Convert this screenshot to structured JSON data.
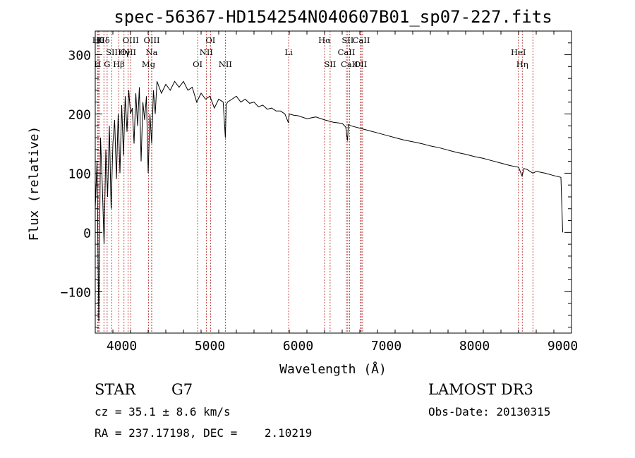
{
  "chart_data": {
    "type": "line",
    "title": "spec-56367-HD154254N040607B01_sp07-227.fits",
    "xlabel": "Wavelength (Å)",
    "ylabel": "Flux (relative)",
    "xlim": [
      3700,
      9100
    ],
    "ylim": [
      -170,
      340
    ],
    "xticks": [
      4000,
      5000,
      6000,
      7000,
      8000,
      9000
    ],
    "yticks": [
      -100,
      0,
      100,
      200,
      300
    ],
    "ytick_labels": [
      "−100",
      "0",
      "100",
      "200",
      "300"
    ],
    "series": [
      {
        "name": "flux",
        "x": [
          3700,
          3720,
          3740,
          3760,
          3780,
          3800,
          3820,
          3840,
          3860,
          3880,
          3900,
          3920,
          3940,
          3960,
          3980,
          4000,
          4020,
          4040,
          4060,
          4080,
          4100,
          4120,
          4140,
          4160,
          4180,
          4200,
          4220,
          4240,
          4260,
          4280,
          4300,
          4320,
          4340,
          4360,
          4380,
          4400,
          4450,
          4500,
          4550,
          4600,
          4650,
          4700,
          4750,
          4800,
          4850,
          4900,
          4950,
          5000,
          5050,
          5100,
          5150,
          5175,
          5185,
          5200,
          5250,
          5300,
          5350,
          5400,
          5450,
          5500,
          5550,
          5600,
          5650,
          5700,
          5750,
          5800,
          5850,
          5890,
          5900,
          5950,
          6000,
          6100,
          6200,
          6300,
          6400,
          6500,
          6540,
          6560,
          6570,
          6600,
          6700,
          6800,
          6900,
          7000,
          7100,
          7200,
          7300,
          7400,
          7500,
          7600,
          7700,
          7800,
          7900,
          8000,
          8100,
          8200,
          8300,
          8400,
          8500,
          8540,
          8560,
          8600,
          8662,
          8700,
          8800,
          8900,
          8980,
          9000
        ],
        "y": [
          40,
          120,
          -150,
          160,
          80,
          -20,
          140,
          60,
          180,
          40,
          150,
          190,
          90,
          200,
          100,
          215,
          130,
          230,
          170,
          240,
          200,
          210,
          150,
          235,
          180,
          245,
          120,
          220,
          190,
          230,
          100,
          200,
          150,
          240,
          200,
          255,
          235,
          250,
          240,
          255,
          245,
          255,
          240,
          245,
          220,
          235,
          225,
          230,
          210,
          225,
          220,
          160,
          215,
          220,
          225,
          230,
          220,
          225,
          218,
          220,
          212,
          215,
          208,
          210,
          205,
          205,
          200,
          185,
          200,
          198,
          197,
          192,
          195,
          190,
          186,
          184,
          178,
          155,
          182,
          180,
          176,
          172,
          168,
          164,
          160,
          156,
          153,
          150,
          146,
          143,
          139,
          135,
          132,
          128,
          125,
          121,
          117,
          113,
          110,
          95,
          108,
          106,
          100,
          103,
          100,
          96,
          93,
          0
        ]
      }
    ],
    "line_markers": [
      {
        "wl": 3734,
        "label": "Hθ",
        "row": 0
      },
      {
        "wl": 3750,
        "label": "K",
        "row": 0
      },
      {
        "wl": 3798,
        "label": "Hδ",
        "row": 0
      },
      {
        "wl": 4102,
        "label": "OIII",
        "row": 0
      },
      {
        "wl": 4340,
        "label": "OIII",
        "row": 0
      },
      {
        "wl": 5007,
        "label": "OI",
        "row": 0
      },
      {
        "wl": 6300,
        "label": "Hα",
        "row": 0
      },
      {
        "wl": 6563,
        "label": "SII",
        "row": 0
      },
      {
        "wl": 6716,
        "label": "CaII",
        "row": 0
      },
      {
        "wl": 8498,
        "label": "HeI",
        "row": 1
      },
      {
        "wl": 3889,
        "label": "SII",
        "row": 1
      },
      {
        "wl": 4026,
        "label": "Hγ",
        "row": 1
      },
      {
        "wl": 4072,
        "label": "OIII",
        "row": 1
      },
      {
        "wl": 4340,
        "label": "Na",
        "row": 1
      },
      {
        "wl": 4959,
        "label": "NII",
        "row": 1
      },
      {
        "wl": 5893,
        "label": "Li",
        "row": 1
      },
      {
        "wl": 6548,
        "label": "CaII",
        "row": 1
      },
      {
        "wl": 6708,
        "label": "OII",
        "row": 2
      },
      {
        "wl": 8542,
        "label": "Hη",
        "row": 2
      },
      {
        "wl": 3727,
        "label": "H",
        "row": 2
      },
      {
        "wl": 3835,
        "label": "G",
        "row": 2
      },
      {
        "wl": 3968,
        "label": "Hβ",
        "row": 2
      },
      {
        "wl": 4304,
        "label": "Mg",
        "row": 2
      },
      {
        "wl": 4861,
        "label": "OI",
        "row": 2
      },
      {
        "wl": 5175,
        "label": "NII",
        "row": 2
      },
      {
        "wl": 6363,
        "label": "SII",
        "row": 2
      },
      {
        "wl": 6583,
        "label": "CaII",
        "row": 2
      },
      {
        "wl": 6731,
        "label": "",
        "row": 2
      },
      {
        "wl": 8662,
        "label": "",
        "row": 2
      }
    ]
  },
  "info": {
    "class": "STAR",
    "subclass": "G7",
    "survey": "LAMOST DR3",
    "cz": "cz = 35.1 ± 8.6 km/s",
    "obs_date": "Obs-Date: 20130315",
    "coords": "RA = 237.17198, DEC =    2.10219"
  }
}
